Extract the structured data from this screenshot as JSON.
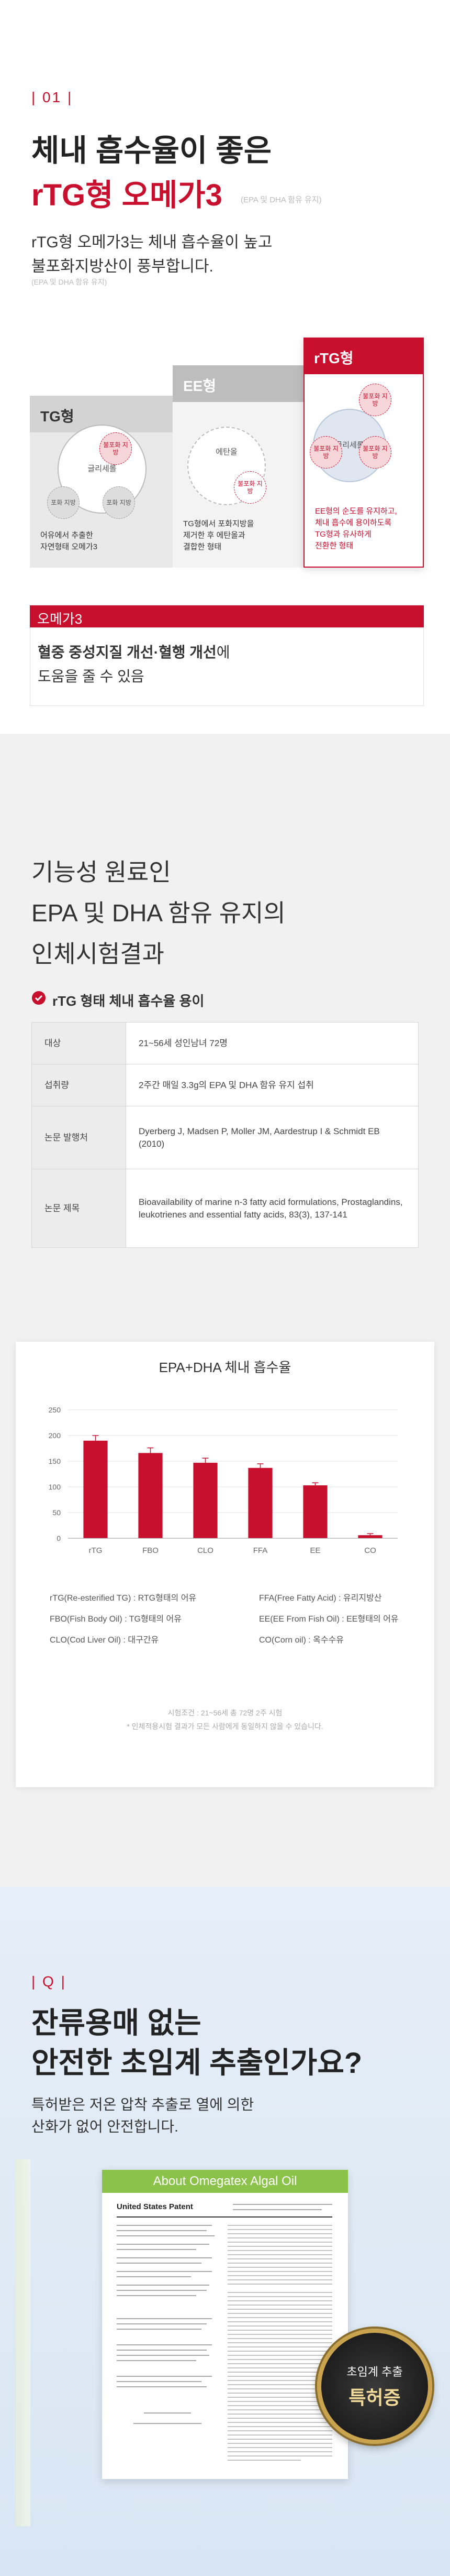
{
  "section1": {
    "number": "| 01 |",
    "title": "체내 흡수율이 좋은",
    "title_red": "rTG형 오메가3",
    "title_note": "(EPA 및 DHA 함유 유지)",
    "desc": [
      "rTG형 오메가3는 체내 흡수율이 높고",
      "불포화지방산이 풍부합니다."
    ],
    "desc_note": "(EPA 및 DHA 함유 유지)",
    "comparison": [
      {
        "name": "TG형",
        "labels": [
          "글리세롤",
          "불포화 지방",
          "포화 지방",
          "포화 지방"
        ],
        "caption": [
          "어유에서 추출한",
          "자연형태 오메가3"
        ]
      },
      {
        "name": "EE형",
        "labels": [
          "에탄올",
          "불포화 지방"
        ],
        "caption": [
          "TG형에서 포화지방을",
          "제거한 후 에탄올과",
          "결합한 형태"
        ]
      },
      {
        "name": "rTG형",
        "labels": [
          "글리세롤",
          "불포화 지방",
          "불포화 지방",
          "불포화 지방"
        ],
        "caption": [
          "EE형의 순도를 유지하고,",
          "체내 흡수에 용이하도록",
          "TG형과 유사하게",
          "전환한 형태"
        ]
      }
    ],
    "benefit_label": "오메가3",
    "benefit_bold": "혈중 중성지질 개선·혈행 개선",
    "benefit_rest": "에",
    "benefit_line2": "도움을 줄 수 있음"
  },
  "section2": {
    "title": [
      "기능성 원료인",
      "EPA 및 DHA 함유 유지의",
      "인체시험결과"
    ],
    "heading": "rTG 형태 체내 흡수율 용이",
    "table": {
      "rows": [
        [
          "대상",
          "21~56세 성인남녀 72명"
        ],
        [
          "섭취량",
          "2주간 매일 3.3g의 EPA 및 DHA 함유 유지 섭취"
        ],
        [
          "논문 발행처",
          "Dyerberg J, Madsen P, Moller JM, Aardestrup I & Schmidt EB (2010)"
        ],
        [
          "논문 제목",
          "Bioavailability of marine n-3 fatty acid formulations, Prostaglandins, leukotrienes and essential fatty acids, 83(3), 137-141"
        ]
      ]
    }
  },
  "chart_data": {
    "type": "bar",
    "title": "EPA+DHA 체내 흡수율",
    "categories": [
      "rTG",
      "FBO",
      "CLO",
      "FFA",
      "EE",
      "CO"
    ],
    "values": [
      190,
      166,
      147,
      137,
      103,
      6
    ],
    "errors": [
      10,
      10,
      9,
      8,
      5,
      3
    ],
    "color": "#c8102e",
    "ylim": [
      0,
      250
    ],
    "yticks": [
      0,
      50,
      100,
      150,
      200,
      250
    ],
    "grid": true,
    "descriptions": [
      "rTG(Re-esterified TG) : RTG형태의 어유",
      "FFA(Free Fatty Acid) : 유리지방산",
      "FBO(Fish Body Oil) : TG형태의 어유",
      "EE(EE From Fish Oil) : EE형태의 어유",
      "CLO(Cod Liver Oil) : 대구간유",
      "CO(Corn oil) : 옥수수유"
    ],
    "notes": [
      "시험조건 : 21~56세 총 72명 2주 시험",
      "* 인체적용시험 결과가 모든 사람에게 동일하지 않을 수 있습니다."
    ]
  },
  "section3": {
    "number": "| Q |",
    "title": [
      "잔류용매 없는",
      "안전한 초임계 추출인가요?"
    ],
    "desc": [
      "특허받은 저온 압착 추출로 열에 의한",
      "산화가 없어 안전합니다."
    ],
    "document_header": "About Omegatex Algal Oil",
    "document_title": "United States Patent",
    "badge": [
      "초임계 추출",
      "특허증"
    ]
  }
}
